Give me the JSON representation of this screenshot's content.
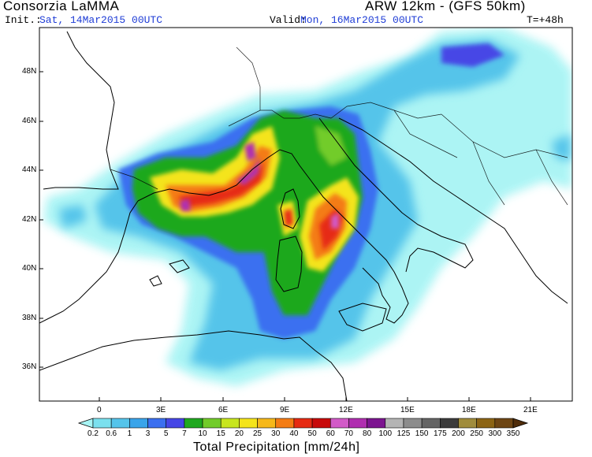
{
  "header": {
    "source": "Consorzia LaMMA",
    "model": "ARW 12km - (GFS 50km)",
    "init_label": "Init.:",
    "init_value": "Sat, 14Mar2015 00UTC",
    "valid_label": "Valid:",
    "valid_value": "Mon, 16Mar2015 00UTC",
    "lead_time": "T=+48h"
  },
  "map": {
    "lat_labels": [
      "48N",
      "46N",
      "44N",
      "42N",
      "40N",
      "38N",
      "36N"
    ],
    "lon_labels": [
      "0",
      "3E",
      "6E",
      "9E",
      "12E",
      "15E",
      "18E",
      "21E"
    ]
  },
  "colorbar": {
    "title": "Total Precipitation [mm/24h]",
    "levels": [
      "0.2",
      "0.6",
      "1",
      "3",
      "5",
      "7",
      "10",
      "15",
      "20",
      "25",
      "30",
      "40",
      "50",
      "60",
      "70",
      "80",
      "100",
      "125",
      "150",
      "175",
      "200",
      "250",
      "300",
      "350"
    ],
    "colors": [
      "#a8f4f4",
      "#7be0ee",
      "#55c4ea",
      "#3aa4ea",
      "#3b6ff0",
      "#4646e6",
      "#1fa81f",
      "#72cc2a",
      "#c8e61e",
      "#f4e41a",
      "#f6b81a",
      "#f47c14",
      "#e62a12",
      "#c80a0a",
      "#d25ac8",
      "#b02eb0",
      "#7c1490",
      "#b4b4b4",
      "#8c8c8c",
      "#646464",
      "#3c3c3c",
      "#a08c3c",
      "#8c6414",
      "#6e4614",
      "#502d0a"
    ]
  }
}
